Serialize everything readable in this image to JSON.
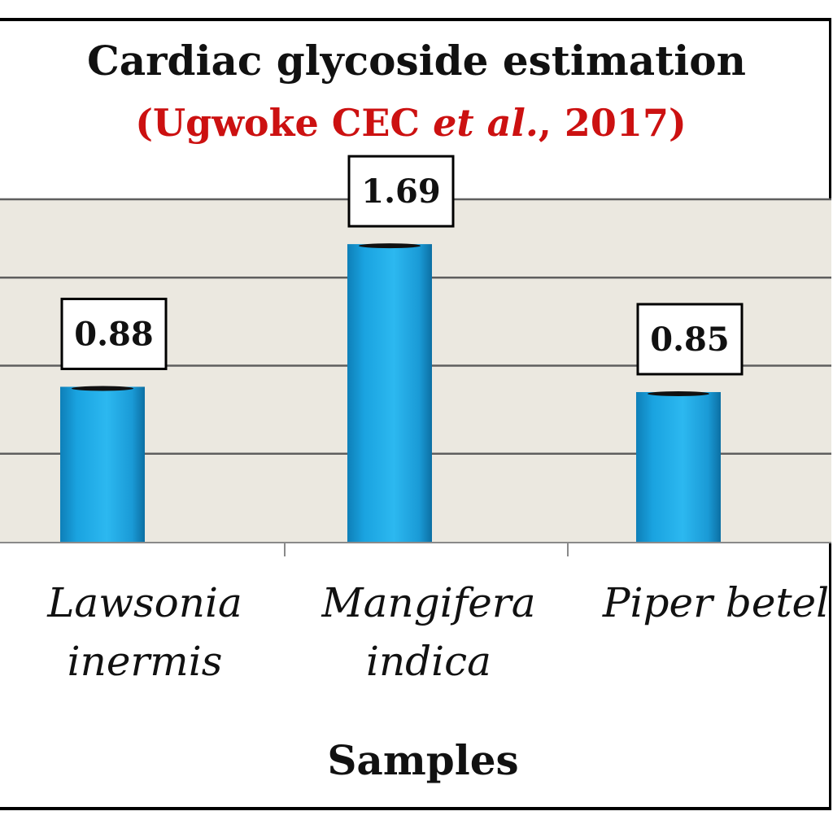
{
  "chart_data": {
    "type": "bar",
    "title": "Cardiac glycoside estimation",
    "subtitle_parts": [
      "(Ugwoke CEC ",
      "et al.",
      ", 2017)"
    ],
    "categories": [
      [
        "Lawsonia",
        "inermis"
      ],
      [
        "Mangifera",
        "indica"
      ],
      [
        "Piper betel"
      ]
    ],
    "values": [
      0.88,
      1.69,
      0.85
    ],
    "value_labels": [
      "0.88",
      "1.69",
      "0.85"
    ],
    "xlabel": "Samples",
    "ylabel": "",
    "ylim": [
      0,
      2
    ],
    "grid": true,
    "legend": "none",
    "colors": {
      "bar": "#1aa3e0",
      "plot_background": "#ebe8e0",
      "gridline": "#5e5e5e",
      "subtitle": "#cc1111"
    }
  }
}
